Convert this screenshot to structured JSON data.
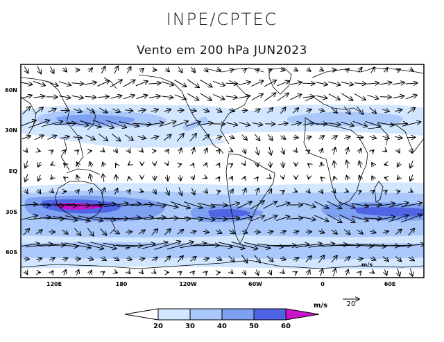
{
  "header": {
    "brand": "INPE/CPTEC",
    "title": "Vento em 200 hPa JUN2023"
  },
  "map": {
    "lon_labels": [
      "120E",
      "180",
      "120W",
      "60W",
      "0",
      "60E"
    ],
    "lat_labels": [
      "60N",
      "30N",
      "EQ",
      "30S",
      "60S"
    ],
    "inner_unit_label": "m/s"
  },
  "reference_vector": {
    "unit": "m/s",
    "value": "20"
  },
  "colorbar": {
    "ticks": [
      "20",
      "30",
      "40",
      "50",
      "60"
    ],
    "colors": [
      "#d2e6ff",
      "#aac8fa",
      "#7da0f0",
      "#5064e6",
      "#c814c8"
    ],
    "below_color": "#ffffff"
  }
}
